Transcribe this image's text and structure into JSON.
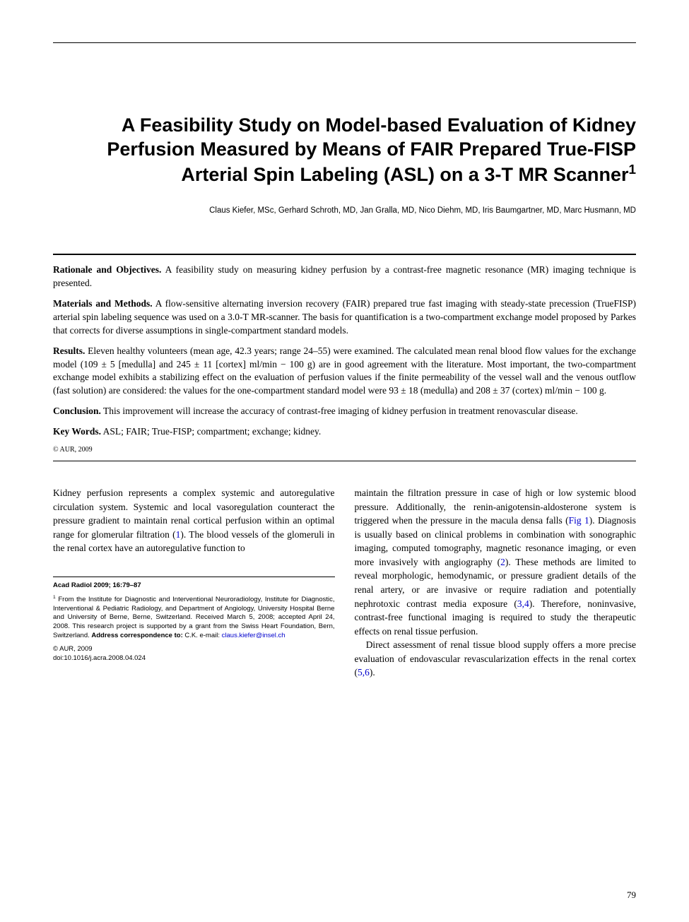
{
  "title": "A Feasibility Study on Model-based Evaluation of Kidney Perfusion Measured by Means of FAIR Prepared True-FISP Arterial Spin Labeling (ASL) on a 3-T MR Scanner",
  "title_footnote_marker": "1",
  "authors": "Claus Kiefer, MSc, Gerhard Schroth, MD, Jan Gralla, MD, Nico Diehm, MD, Iris Baumgartner, MD, Marc Husmann, MD",
  "abstract": {
    "rationale": {
      "label": "Rationale and Objectives.",
      "text": " A feasibility study on measuring kidney perfusion by a contrast-free magnetic resonance (MR) imaging technique is presented."
    },
    "materials": {
      "label": "Materials and Methods.",
      "text": " A flow-sensitive alternating inversion recovery (FAIR) prepared true fast imaging with steady-state precession (TrueFISP) arterial spin labeling sequence was used on a 3.0-T MR-scanner. The basis for quantification is a two-compartment exchange model proposed by Parkes that corrects for diverse assumptions in single-compartment standard models."
    },
    "results": {
      "label": "Results.",
      "text": " Eleven healthy volunteers (mean age, 42.3 years; range 24–55) were examined. The calculated mean renal blood flow values for the exchange model (109 ± 5 [medulla] and 245 ± 11 [cortex] ml/min − 100 g) are in good agreement with the literature. Most important, the two-compartment exchange model exhibits a stabilizing effect on the evaluation of perfusion values if the finite permeability of the vessel wall and the venous outflow (fast solution) are considered: the values for the one-compartment standard model were 93 ± 18 (medulla) and 208 ± 37 (cortex) ml/min − 100 g."
    },
    "conclusion": {
      "label": "Conclusion.",
      "text": " This improvement will increase the accuracy of contrast-free imaging of kidney perfusion in treatment renovascular disease."
    },
    "keywords": {
      "label": "Key Words.",
      "text": " ASL; FAIR; True-FISP; compartment; exchange; kidney."
    },
    "copyright": "© AUR, 2009"
  },
  "body": {
    "col1_p1_a": "Kidney perfusion represents a complex systemic and autoregulative circulation system. Systemic and local vasoregulation counteract the pressure gradient to maintain renal cortical perfusion within an optimal range for glomerular filtration (",
    "col1_p1_ref1": "1",
    "col1_p1_b": "). The blood vessels of the glomeruli in the renal cortex have an autoregulative function to",
    "col2_p1_a": "maintain the filtration pressure in case of high or low systemic blood pressure. Additionally, the renin-anigotensin-aldosterone system is triggered when the pressure in the macula densa falls (",
    "col2_p1_fig": "Fig 1",
    "col2_p1_b": "). Diagnosis is usually based on clinical problems in combination with sonographic imaging, computed tomography, magnetic resonance imaging, or even more invasively with angiography (",
    "col2_p1_ref2": "2",
    "col2_p1_c": "). These methods are limited to reveal morphologic, hemodynamic, or pressure gradient details of the renal artery, or are invasive or require radiation and potentially nephrotoxic contrast media exposure (",
    "col2_p1_ref34": "3,4",
    "col2_p1_d": "). Therefore, noninvasive, contrast-free functional imaging is required to study the therapeutic effects on renal tissue perfusion.",
    "col2_p2_a": "Direct assessment of renal tissue blood supply offers a more precise evaluation of endovascular revascularization effects in the renal cortex (",
    "col2_p2_ref56": "5,6",
    "col2_p2_b": ")."
  },
  "footnotes": {
    "journal": "Acad Radiol 2009; 16:79–87",
    "affil_marker": "1",
    "affil_a": " From the Institute for Diagnostic and Interventional Neuroradiology, Institute for Diagnostic, Interventional & Pediatric Radiology, and Department of Angiology, University Hospital Berne and University of Berne, Berne, Switzerland. Received March 5, 2008; accepted April 24, 2008. This research project is supported by a grant from the Swiss Heart Foundation, Bern, Switzerland. ",
    "affil_label": "Address correspondence to:",
    "affil_b": " C.K. e-mail: ",
    "email": "claus.kiefer@insel.ch",
    "copy_a": "© AUR, 2009",
    "doi": "doi:10.1016/j.acra.2008.04.024"
  },
  "page_number": "79",
  "colors": {
    "text": "#000000",
    "link": "#0000cc",
    "background": "#ffffff"
  }
}
